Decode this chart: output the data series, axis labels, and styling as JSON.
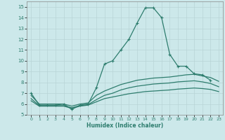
{
  "title": "",
  "xlabel": "Humidex (Indice chaleur)",
  "ylabel": "",
  "bg_color": "#cce8ea",
  "grid_color": "#b8d4d6",
  "line_color": "#2e7d6e",
  "xlim": [
    -0.5,
    23.5
  ],
  "ylim": [
    5,
    15.5
  ],
  "xticks": [
    0,
    1,
    2,
    3,
    4,
    5,
    6,
    7,
    8,
    9,
    10,
    11,
    12,
    13,
    14,
    15,
    16,
    17,
    18,
    19,
    20,
    21,
    22,
    23
  ],
  "yticks": [
    5,
    6,
    7,
    8,
    9,
    10,
    11,
    12,
    13,
    14,
    15
  ],
  "series": [
    {
      "x": [
        0,
        1,
        2,
        3,
        4,
        5,
        6,
        7,
        8,
        9,
        10,
        11,
        12,
        13,
        14,
        15,
        16,
        17,
        18,
        19,
        20,
        21,
        22
      ],
      "y": [
        7.0,
        5.9,
        5.9,
        5.9,
        6.0,
        5.5,
        5.9,
        6.0,
        7.5,
        9.7,
        10.0,
        11.0,
        12.0,
        13.5,
        14.9,
        14.9,
        14.0,
        10.6,
        9.5,
        9.5,
        8.8,
        8.7,
        8.2
      ],
      "marker": "+"
    },
    {
      "x": [
        0,
        1,
        2,
        3,
        4,
        5,
        6,
        7,
        8,
        9,
        10,
        11,
        12,
        13,
        14,
        15,
        16,
        17,
        18,
        19,
        20,
        21,
        22,
        23
      ],
      "y": [
        6.8,
        6.0,
        6.0,
        6.0,
        6.0,
        5.8,
        6.0,
        6.1,
        6.8,
        7.2,
        7.5,
        7.8,
        8.0,
        8.2,
        8.3,
        8.4,
        8.45,
        8.5,
        8.6,
        8.7,
        8.75,
        8.6,
        8.45,
        8.1
      ],
      "marker": null
    },
    {
      "x": [
        0,
        1,
        2,
        3,
        4,
        5,
        6,
        7,
        8,
        9,
        10,
        11,
        12,
        13,
        14,
        15,
        16,
        17,
        18,
        19,
        20,
        21,
        22,
        23
      ],
      "y": [
        6.5,
        5.85,
        5.85,
        5.85,
        5.85,
        5.65,
        5.85,
        5.95,
        6.4,
        6.8,
        7.0,
        7.3,
        7.5,
        7.65,
        7.75,
        7.85,
        7.9,
        7.95,
        8.05,
        8.1,
        8.15,
        8.05,
        7.9,
        7.6
      ],
      "marker": null
    },
    {
      "x": [
        0,
        1,
        2,
        3,
        4,
        5,
        6,
        7,
        8,
        9,
        10,
        11,
        12,
        13,
        14,
        15,
        16,
        17,
        18,
        19,
        20,
        21,
        22,
        23
      ],
      "y": [
        6.3,
        5.8,
        5.8,
        5.8,
        5.8,
        5.6,
        5.8,
        5.9,
        6.2,
        6.5,
        6.65,
        6.8,
        6.95,
        7.05,
        7.15,
        7.2,
        7.25,
        7.3,
        7.38,
        7.43,
        7.48,
        7.43,
        7.35,
        7.15
      ],
      "marker": null
    }
  ]
}
